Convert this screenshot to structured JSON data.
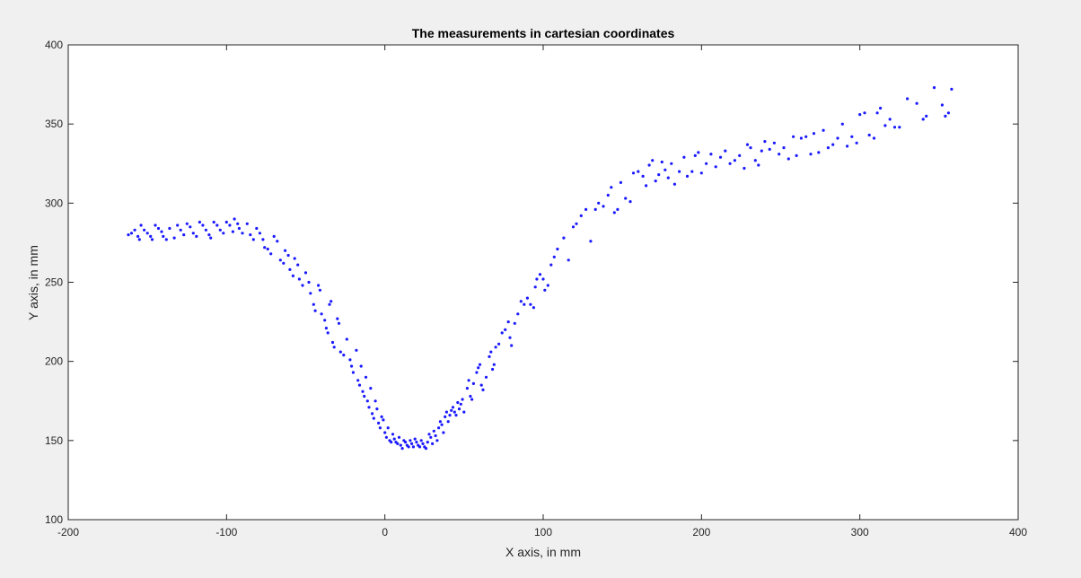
{
  "figure": {
    "background": "#f0f0f0",
    "plot_background": "#ffffff",
    "marker_color": "#1a1aff"
  },
  "chart_data": {
    "type": "scatter",
    "title": "The measurements in cartesian coordinates",
    "xlabel": "X axis, in mm",
    "ylabel": "Y axis, in mm",
    "xlim": [
      -200,
      400
    ],
    "ylim": [
      100,
      400
    ],
    "xticks": [
      -200,
      -100,
      0,
      100,
      200,
      300,
      400
    ],
    "yticks": [
      100,
      150,
      200,
      250,
      300,
      350,
      400
    ],
    "xtick_labels": [
      "-200",
      "-100",
      "0",
      "100",
      "200",
      "300",
      "400"
    ],
    "ytick_labels": [
      "100",
      "150",
      "200",
      "250",
      "300",
      "350",
      "400"
    ],
    "grid": false,
    "legend": "none",
    "series": [
      {
        "marker": "point",
        "points": [
          [
            -162,
            280
          ],
          [
            -160,
            281
          ],
          [
            -158,
            283
          ],
          [
            -156,
            279
          ],
          [
            -155,
            277
          ],
          [
            -154,
            286
          ],
          [
            -152,
            283
          ],
          [
            -150,
            281
          ],
          [
            -148,
            279
          ],
          [
            -147,
            277
          ],
          [
            -145,
            286
          ],
          [
            -143,
            284
          ],
          [
            -141,
            282
          ],
          [
            -140,
            279
          ],
          [
            -138,
            277
          ],
          [
            -136,
            284
          ],
          [
            -133,
            278
          ],
          [
            -131,
            286
          ],
          [
            -129,
            283
          ],
          [
            -127,
            280
          ],
          [
            -125,
            287
          ],
          [
            -123,
            285
          ],
          [
            -121,
            281
          ],
          [
            -119,
            279
          ],
          [
            -117,
            288
          ],
          [
            -115,
            286
          ],
          [
            -113,
            283
          ],
          [
            -111,
            280
          ],
          [
            -110,
            278
          ],
          [
            -108,
            288
          ],
          [
            -106,
            286
          ],
          [
            -104,
            283
          ],
          [
            -102,
            281
          ],
          [
            -100,
            288
          ],
          [
            -98,
            286
          ],
          [
            -96,
            282
          ],
          [
            -95,
            290
          ],
          [
            -93,
            287
          ],
          [
            -92,
            284
          ],
          [
            -90,
            281
          ],
          [
            -87,
            287
          ],
          [
            -85,
            280
          ],
          [
            -83,
            277
          ],
          [
            -81,
            284
          ],
          [
            -79,
            281
          ],
          [
            -77,
            277
          ],
          [
            -76,
            272
          ],
          [
            -74,
            271
          ],
          [
            -72,
            268
          ],
          [
            -70,
            279
          ],
          [
            -68,
            276
          ],
          [
            -66,
            264
          ],
          [
            -64,
            262
          ],
          [
            -63,
            270
          ],
          [
            -61,
            267
          ],
          [
            -60,
            258
          ],
          [
            -58,
            254
          ],
          [
            -57,
            265
          ],
          [
            -55,
            261
          ],
          [
            -54,
            252
          ],
          [
            -52,
            248
          ],
          [
            -50,
            256
          ],
          [
            -48,
            250
          ],
          [
            -47,
            243
          ],
          [
            -45,
            236
          ],
          [
            -44,
            232
          ],
          [
            -42,
            248
          ],
          [
            -41,
            245
          ],
          [
            -40,
            230
          ],
          [
            -38,
            226
          ],
          [
            -37,
            221
          ],
          [
            -36,
            218
          ],
          [
            -35,
            236
          ],
          [
            -34,
            238
          ],
          [
            -33,
            212
          ],
          [
            -32,
            209
          ],
          [
            -30,
            227
          ],
          [
            -29,
            224
          ],
          [
            -28,
            206
          ],
          [
            -26,
            204
          ],
          [
            -24,
            214
          ],
          [
            -22,
            201
          ],
          [
            -21,
            197
          ],
          [
            -20,
            193
          ],
          [
            -18,
            207
          ],
          [
            -17,
            188
          ],
          [
            -16,
            185
          ],
          [
            -15,
            197
          ],
          [
            -14,
            181
          ],
          [
            -13,
            178
          ],
          [
            -12,
            190
          ],
          [
            -11,
            175
          ],
          [
            -10,
            171
          ],
          [
            -9,
            183
          ],
          [
            -8,
            167
          ],
          [
            -7,
            164
          ],
          [
            -6,
            175
          ],
          [
            -5,
            170
          ],
          [
            -4,
            161
          ],
          [
            -3,
            158
          ],
          [
            -2,
            165
          ],
          [
            -1,
            163
          ],
          [
            0,
            155
          ],
          [
            1,
            152
          ],
          [
            2,
            158
          ],
          [
            3,
            150
          ],
          [
            4,
            149
          ],
          [
            5,
            154
          ],
          [
            6,
            151
          ],
          [
            7,
            149
          ],
          [
            8,
            148
          ],
          [
            9,
            152
          ],
          [
            10,
            147
          ],
          [
            11,
            145
          ],
          [
            12,
            150
          ],
          [
            13,
            149
          ],
          [
            14,
            147
          ],
          [
            15,
            146
          ],
          [
            16,
            150
          ],
          [
            17,
            148
          ],
          [
            18,
            146
          ],
          [
            19,
            151
          ],
          [
            20,
            149
          ],
          [
            21,
            147
          ],
          [
            22,
            146
          ],
          [
            23,
            150
          ],
          [
            24,
            148
          ],
          [
            25,
            146
          ],
          [
            26,
            145
          ],
          [
            27,
            149
          ],
          [
            28,
            154
          ],
          [
            29,
            152
          ],
          [
            30,
            148
          ],
          [
            31,
            156
          ],
          [
            32,
            153
          ],
          [
            33,
            150
          ],
          [
            34,
            158
          ],
          [
            35,
            162
          ],
          [
            36,
            160
          ],
          [
            37,
            155
          ],
          [
            38,
            165
          ],
          [
            39,
            168
          ],
          [
            40,
            162
          ],
          [
            41,
            166
          ],
          [
            42,
            169
          ],
          [
            43,
            171
          ],
          [
            44,
            168
          ],
          [
            45,
            166
          ],
          [
            46,
            174
          ],
          [
            47,
            170
          ],
          [
            48,
            173
          ],
          [
            49,
            176
          ],
          [
            50,
            168
          ],
          [
            52,
            183
          ],
          [
            53,
            188
          ],
          [
            54,
            178
          ],
          [
            55,
            176
          ],
          [
            56,
            186
          ],
          [
            58,
            193
          ],
          [
            59,
            196
          ],
          [
            60,
            198
          ],
          [
            61,
            185
          ],
          [
            62,
            182
          ],
          [
            64,
            190
          ],
          [
            66,
            203
          ],
          [
            67,
            206
          ],
          [
            68,
            195
          ],
          [
            69,
            198
          ],
          [
            70,
            209
          ],
          [
            72,
            211
          ],
          [
            74,
            218
          ],
          [
            76,
            220
          ],
          [
            78,
            225
          ],
          [
            79,
            215
          ],
          [
            80,
            210
          ],
          [
            82,
            224
          ],
          [
            84,
            230
          ],
          [
            86,
            238
          ],
          [
            88,
            236
          ],
          [
            90,
            240
          ],
          [
            92,
            236
          ],
          [
            94,
            234
          ],
          [
            95,
            247
          ],
          [
            96,
            252
          ],
          [
            98,
            255
          ],
          [
            100,
            252
          ],
          [
            101,
            245
          ],
          [
            103,
            248
          ],
          [
            105,
            261
          ],
          [
            107,
            266
          ],
          [
            109,
            271
          ],
          [
            113,
            278
          ],
          [
            116,
            264
          ],
          [
            119,
            285
          ],
          [
            121,
            287
          ],
          [
            124,
            292
          ],
          [
            127,
            296
          ],
          [
            130,
            276
          ],
          [
            133,
            296
          ],
          [
            135,
            300
          ],
          [
            138,
            298
          ],
          [
            141,
            305
          ],
          [
            143,
            310
          ],
          [
            145,
            294
          ],
          [
            147,
            296
          ],
          [
            149,
            313
          ],
          [
            152,
            303
          ],
          [
            155,
            301
          ],
          [
            157,
            319
          ],
          [
            160,
            320
          ],
          [
            163,
            317
          ],
          [
            165,
            311
          ],
          [
            167,
            324
          ],
          [
            169,
            327
          ],
          [
            171,
            314
          ],
          [
            173,
            318
          ],
          [
            175,
            326
          ],
          [
            177,
            321
          ],
          [
            179,
            316
          ],
          [
            181,
            325
          ],
          [
            183,
            312
          ],
          [
            186,
            320
          ],
          [
            189,
            329
          ],
          [
            191,
            317
          ],
          [
            194,
            320
          ],
          [
            196,
            330
          ],
          [
            198,
            332
          ],
          [
            200,
            319
          ],
          [
            203,
            325
          ],
          [
            206,
            331
          ],
          [
            209,
            323
          ],
          [
            212,
            329
          ],
          [
            215,
            333
          ],
          [
            218,
            325
          ],
          [
            221,
            327
          ],
          [
            224,
            330
          ],
          [
            227,
            322
          ],
          [
            229,
            337
          ],
          [
            231,
            335
          ],
          [
            234,
            327
          ],
          [
            236,
            324
          ],
          [
            238,
            333
          ],
          [
            240,
            339
          ],
          [
            243,
            334
          ],
          [
            246,
            338
          ],
          [
            249,
            331
          ],
          [
            252,
            335
          ],
          [
            255,
            328
          ],
          [
            258,
            342
          ],
          [
            260,
            330
          ],
          [
            263,
            341
          ],
          [
            266,
            342
          ],
          [
            269,
            331
          ],
          [
            271,
            344
          ],
          [
            274,
            332
          ],
          [
            277,
            346
          ],
          [
            280,
            335
          ],
          [
            283,
            337
          ],
          [
            286,
            341
          ],
          [
            289,
            350
          ],
          [
            292,
            336
          ],
          [
            295,
            342
          ],
          [
            298,
            338
          ],
          [
            300,
            356
          ],
          [
            303,
            357
          ],
          [
            306,
            343
          ],
          [
            309,
            341
          ],
          [
            311,
            357
          ],
          [
            313,
            360
          ],
          [
            316,
            349
          ],
          [
            319,
            353
          ],
          [
            322,
            348
          ],
          [
            325,
            348
          ],
          [
            330,
            366
          ],
          [
            336,
            363
          ],
          [
            340,
            353
          ],
          [
            342,
            355
          ],
          [
            347,
            373
          ],
          [
            352,
            362
          ],
          [
            354,
            355
          ],
          [
            356,
            357
          ],
          [
            358,
            372
          ]
        ]
      }
    ]
  }
}
